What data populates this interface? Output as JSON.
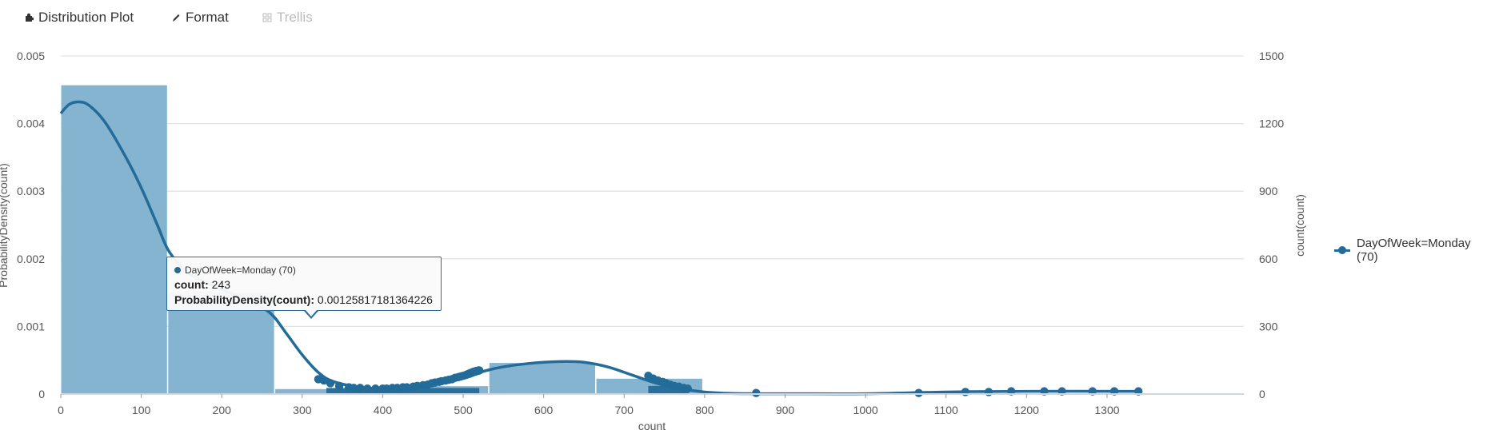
{
  "toolbar": {
    "tabs": [
      {
        "label": "Distribution Plot",
        "icon": "puzzle-icon"
      },
      {
        "label": "Format",
        "icon": "pencil-icon"
      },
      {
        "label": "Trellis",
        "icon": "grid-icon",
        "disabled": true
      }
    ]
  },
  "colors": {
    "bar": "#84b4cf",
    "line": "#236b99",
    "grid": "#e3e3e3",
    "text": "#555555"
  },
  "tooltip": {
    "series": "DayOfWeek=Monday (70)",
    "x_label": "count:",
    "x_value": "243",
    "y_label": "ProbabilityDensity(count):",
    "y_value": "0.00125817181364226"
  },
  "legend": {
    "label": "DayOfWeek=Monday (70)"
  },
  "chart_data": {
    "type": "bar",
    "xlabel": "count",
    "ylabel_left": "ProbabilityDensity(count)",
    "ylabel_right": "count(count)",
    "xlim": [
      0,
      1470
    ],
    "ylim_left": [
      0,
      0.005
    ],
    "ylim_right": [
      0,
      1500
    ],
    "x_ticks": [
      0,
      100,
      200,
      300,
      400,
      500,
      600,
      700,
      800,
      900,
      1000,
      1100,
      1200,
      1300
    ],
    "y_ticks_left": [
      "0",
      "0.001",
      "0.002",
      "0.003",
      "0.004",
      "0.005"
    ],
    "y_ticks_right": [
      "0",
      "300",
      "600",
      "900",
      "1200",
      "1500"
    ],
    "grid": true,
    "legend_position": "right",
    "histogram": [
      {
        "x0": 0,
        "x1": 133,
        "value": 1370
      },
      {
        "x0": 133,
        "x1": 266,
        "value": 450
      },
      {
        "x0": 266,
        "x1": 399,
        "value": 22
      },
      {
        "x0": 399,
        "x1": 532,
        "value": 35
      },
      {
        "x0": 532,
        "x1": 665,
        "value": 138
      },
      {
        "x0": 665,
        "x1": 798,
        "value": 68
      }
    ],
    "density_curve": {
      "x": [
        0,
        10,
        22,
        35,
        55,
        80,
        100,
        120,
        135,
        160,
        200,
        230,
        260,
        280,
        300,
        320,
        340,
        380,
        420,
        460,
        500,
        540,
        580,
        620,
        650,
        680,
        710,
        740,
        770,
        800,
        830,
        860,
        900,
        1000,
        1100,
        1200,
        1339
      ],
      "y": [
        0.00415,
        0.00428,
        0.00432,
        0.00427,
        0.00402,
        0.00352,
        0.00305,
        0.0025,
        0.0021,
        0.00178,
        0.00155,
        0.0014,
        0.0012,
        0.0009,
        0.00058,
        0.00032,
        0.00018,
        9e-05,
        8e-05,
        0.00013,
        0.00025,
        0.00038,
        0.00045,
        0.00048,
        0.00047,
        0.0004,
        0.00028,
        0.00016,
        8e-05,
        3e-05,
        1e-05,
        5e-06,
        5e-06,
        5e-06,
        3e-05,
        4e-05,
        4e-05
      ]
    },
    "points": {
      "count": [
        320,
        327,
        335,
        346,
        358,
        364,
        372,
        381,
        391,
        400,
        405,
        412,
        418,
        425,
        430,
        438,
        443,
        450,
        456,
        461,
        465,
        470,
        473,
        478,
        482,
        486,
        490,
        494,
        497,
        500,
        503,
        505,
        507,
        508,
        509,
        510,
        511,
        512,
        513,
        514,
        515,
        516,
        517,
        518,
        519,
        520,
        730,
        736,
        742,
        748,
        752,
        757,
        762,
        768,
        774,
        779,
        864,
        1066,
        1124,
        1153,
        1181,
        1222,
        1244,
        1282,
        1309,
        1339
      ],
      "density": [
        0.00022,
        0.0002,
        0.00016,
        0.00012,
        0.0001,
        9e-05,
        9e-05,
        8e-05,
        8e-05,
        8e-05,
        8e-05,
        9e-05,
        9e-05,
        0.0001,
        0.0001,
        0.00011,
        0.00012,
        0.00013,
        0.00014,
        0.00016,
        0.00017,
        0.00018,
        0.00019,
        0.0002,
        0.00021,
        0.00022,
        0.00024,
        0.00025,
        0.00026,
        0.00027,
        0.00028,
        0.00029,
        0.0003,
        0.0003,
        0.00031,
        0.00031,
        0.00032,
        0.00032,
        0.00033,
        0.00033,
        0.00033,
        0.00034,
        0.00034,
        0.00034,
        0.00035,
        0.00035,
        0.00027,
        0.00023,
        0.0002,
        0.00018,
        0.00016,
        0.00014,
        0.00012,
        0.00011,
        9e-05,
        8e-05,
        1.5e-05,
        1.5e-05,
        3e-05,
        3e-05,
        4e-05,
        4e-05,
        4e-05,
        4e-05,
        4e-05,
        4e-05
      ]
    }
  }
}
